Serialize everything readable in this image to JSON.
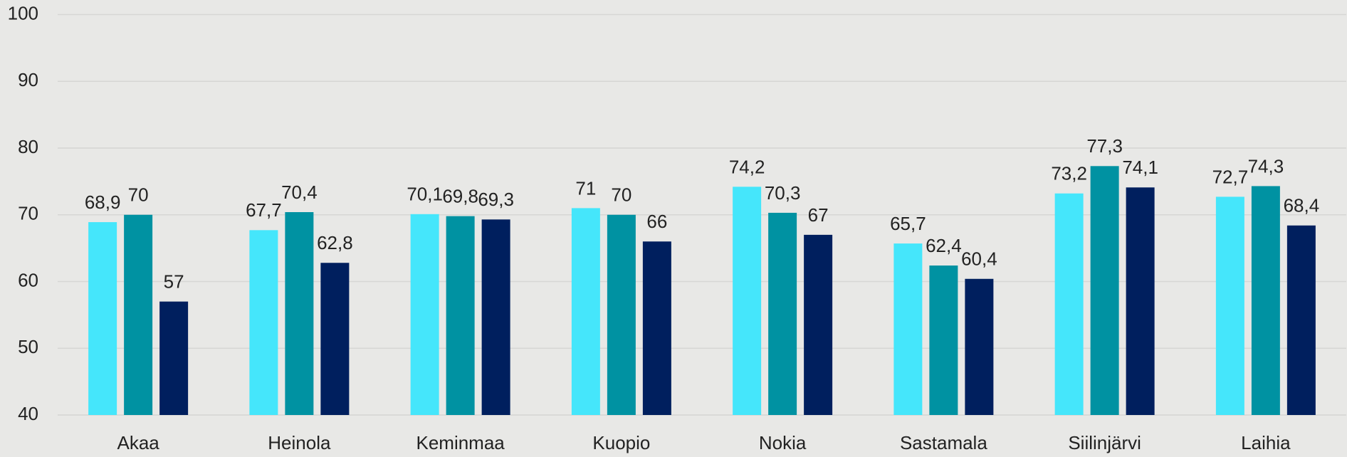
{
  "chart_data": {
    "type": "bar",
    "categories": [
      "Akaa",
      "Heinola",
      "Keminmaa",
      "Kuopio",
      "Nokia",
      "Sastamala",
      "Siilinjärvi",
      "Laihia"
    ],
    "series": [
      {
        "color": "#45e6fb",
        "values": [
          68.9,
          67.7,
          70.1,
          71,
          74.2,
          65.7,
          73.2,
          72.7
        ],
        "value_labels": [
          "68,9",
          "67,7",
          "70,1",
          "71",
          "74,2",
          "65,7",
          "73,2",
          "72,7"
        ]
      },
      {
        "color": "#0092a2",
        "values": [
          70,
          70.4,
          69.8,
          70,
          70.3,
          62.4,
          77.3,
          74.3
        ],
        "value_labels": [
          "70",
          "70,4",
          "69,8",
          "70",
          "70,3",
          "62,4",
          "77,3",
          "74,3"
        ]
      },
      {
        "color": "#001f5e",
        "values": [
          57,
          62.8,
          69.3,
          66,
          67,
          60.4,
          74.1,
          68.4
        ],
        "value_labels": [
          "57",
          "62,8",
          "69,3",
          "66",
          "67",
          "60,4",
          "74,1",
          "68,4"
        ]
      }
    ],
    "ylim": [
      40,
      100
    ],
    "yticks": [
      40,
      50,
      60,
      70,
      80,
      90,
      100
    ],
    "grid": true
  }
}
